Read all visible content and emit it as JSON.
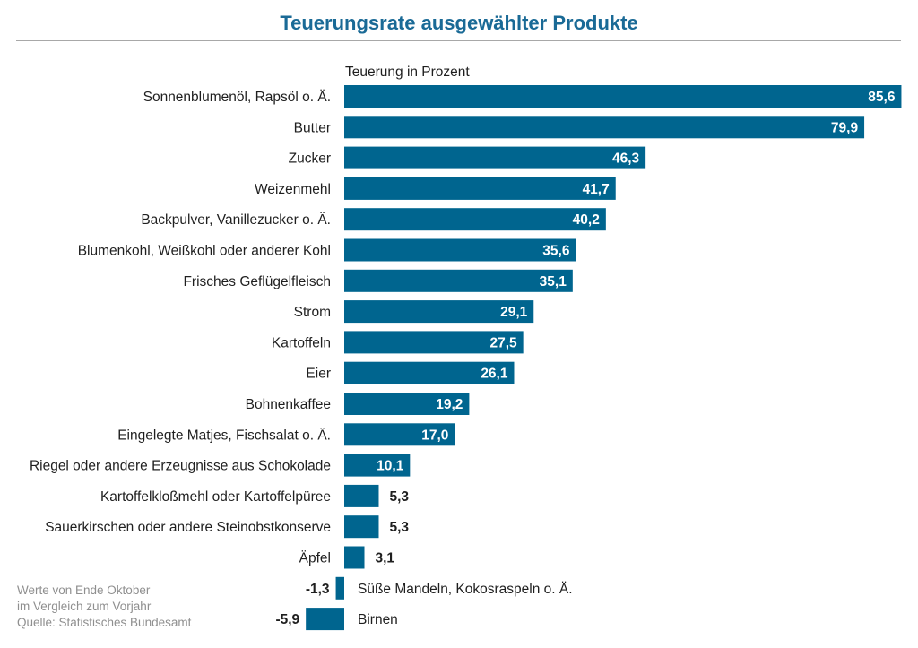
{
  "chart_data": {
    "type": "bar",
    "orientation": "horizontal",
    "title": "Teuerungsrate ausgewählter Produkte",
    "xlabel": "Teuerung in Prozent",
    "categories": [
      "Sonnenblumenöl, Rapsöl o. Ä.",
      "Butter",
      "Zucker",
      "Weizenmehl",
      "Backpulver, Vanillezucker o. Ä.",
      "Blumenkohl, Weißkohl oder anderer Kohl",
      "Frisches Geflügelfleisch",
      "Strom",
      "Kartoffeln",
      "Eier",
      "Bohnenkaffee",
      "Eingelegte Matjes, Fischsalat o. Ä.",
      "Riegel oder andere Erzeugnisse aus Schokolade",
      "Kartoffelkloßmehl oder Kartoffelpüree",
      "Sauerkirschen oder andere Steinobstkonserve",
      "Äpfel",
      "Süße Mandeln, Kokosraspeln o. Ä.",
      "Birnen"
    ],
    "values": [
      85.6,
      79.9,
      46.3,
      41.7,
      40.2,
      35.6,
      35.1,
      29.1,
      27.5,
      26.1,
      19.2,
      17.0,
      10.1,
      5.3,
      5.3,
      3.1,
      -1.3,
      -5.9
    ],
    "value_labels": [
      "85,6",
      "79,9",
      "46,3",
      "41,7",
      "40,2",
      "35,6",
      "35,1",
      "29,1",
      "27,5",
      "26,1",
      "19,2",
      "17,0",
      "10,1",
      "5,3",
      "5,3",
      "3,1",
      "-1,3",
      "-5,9"
    ],
    "xlim": [
      -5.9,
      85.6
    ],
    "grid": false,
    "legend": "none",
    "bar_color": "#00658f",
    "title_color": "#1a6a96"
  },
  "notes": [
    "Werte von Ende Oktober",
    "im Vergleich zum Vorjahr",
    "Quelle: Statistisches Bundesamt"
  ]
}
